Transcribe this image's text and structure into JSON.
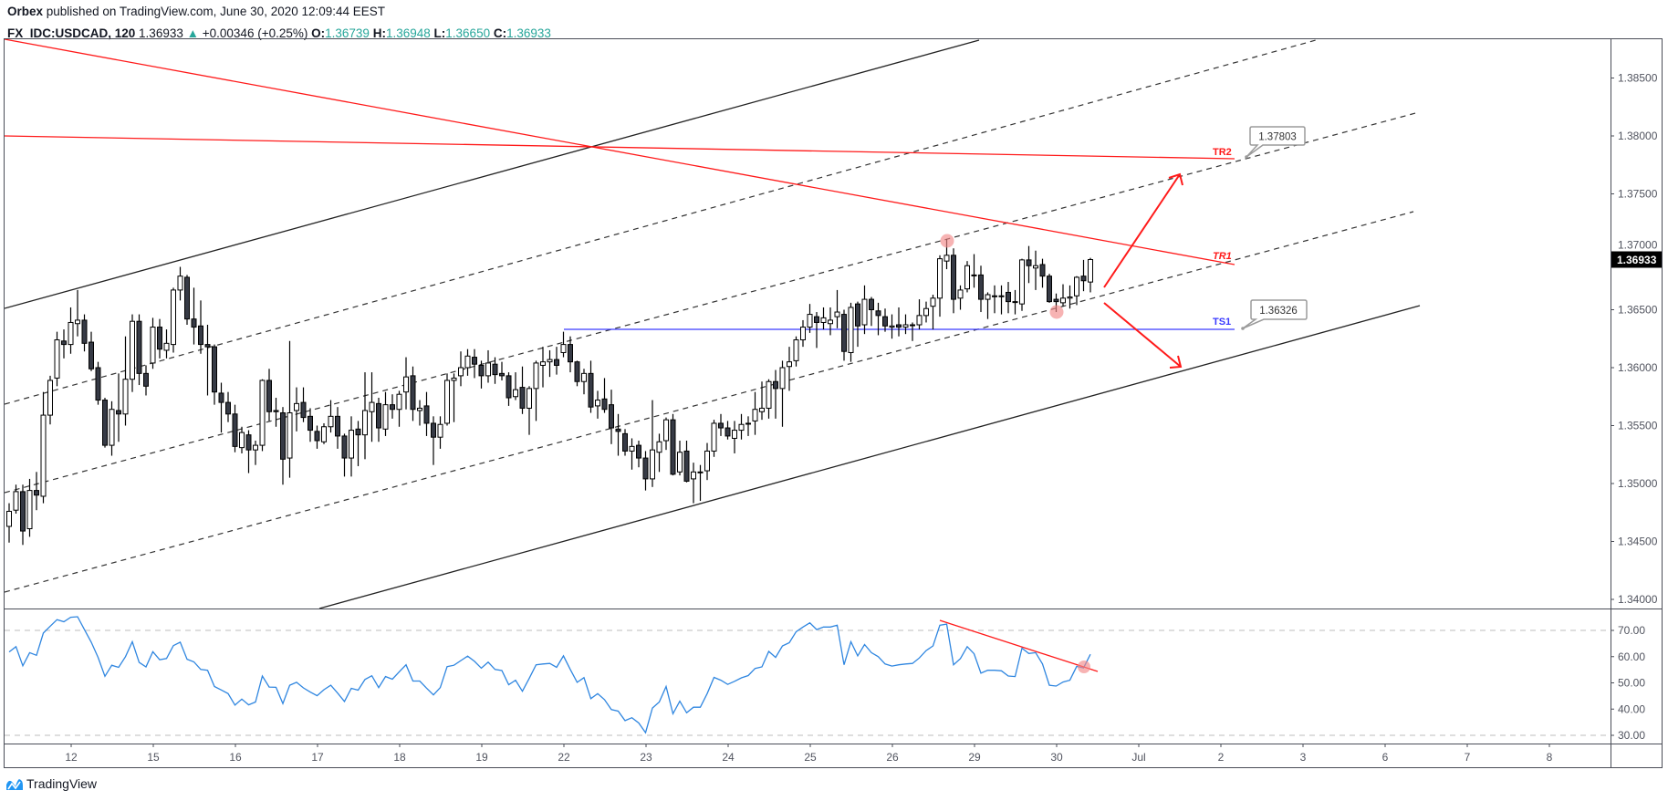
{
  "header": {
    "author": "Orbex",
    "published": " published on TradingView.com, June 30, 2020 12:09:44 EEST",
    "symbol": "FX_IDC:USDCAD, 120",
    "last": "1.36933",
    "change": "+0.00346 (+0.25%)",
    "o_label": "O:",
    "o": "1.36739",
    "h_label": "H:",
    "h": "1.36948",
    "l_label": "L:",
    "l": "1.36650",
    "c_label": "C:",
    "c": "1.36933"
  },
  "footer": {
    "brand": "TradingView"
  },
  "colors": {
    "up_body": "#ffffff",
    "down_body": "#363a45",
    "rsi": "#2f86e0",
    "drawing_red": "#ff1a1a",
    "support_blue": "#3a3aff",
    "teal": "#26a69a"
  },
  "chart_data": [
    {
      "type": "candlestick",
      "title": "FX_IDC:USDCAD, 120",
      "ylim": [
        1.3375,
        1.3885
      ],
      "price_ticks": [
        "1.38500",
        "1.38000",
        "1.37500",
        "1.37000",
        "1.36500",
        "1.36000",
        "1.35500",
        "1.35000",
        "1.34500",
        "1.34000"
      ],
      "last_price_label": "1.36933",
      "x_ticks": [
        "12",
        "15",
        "16",
        "17",
        "18",
        "19",
        "22",
        "23",
        "24",
        "25",
        "26",
        "29",
        "30",
        "Jul",
        "2",
        "3",
        "6",
        "7",
        "8"
      ],
      "candles_ohlc": [
        [
          1.3463,
          1.3483,
          1.3449,
          1.3476
        ],
        [
          1.3477,
          1.3499,
          1.3474,
          1.3493
        ],
        [
          1.3493,
          1.3499,
          1.3447,
          1.3459
        ],
        [
          1.3461,
          1.3504,
          1.3454,
          1.3494
        ],
        [
          1.3494,
          1.351,
          1.3477,
          1.349
        ],
        [
          1.3489,
          1.3579,
          1.3483,
          1.3559
        ],
        [
          1.3559,
          1.3593,
          1.3551,
          1.3589
        ],
        [
          1.3591,
          1.3631,
          1.3584,
          1.3624
        ],
        [
          1.3623,
          1.3633,
          1.3608,
          1.362
        ],
        [
          1.362,
          1.3652,
          1.3612,
          1.3639
        ],
        [
          1.3638,
          1.3667,
          1.3627,
          1.3641
        ],
        [
          1.3641,
          1.3646,
          1.3614,
          1.3621
        ],
        [
          1.3622,
          1.3631,
          1.3597,
          1.3599
        ],
        [
          1.36,
          1.3605,
          1.3568,
          1.3572
        ],
        [
          1.3572,
          1.3574,
          1.3531,
          1.3533
        ],
        [
          1.3533,
          1.3571,
          1.3524,
          1.3564
        ],
        [
          1.3563,
          1.3595,
          1.3536,
          1.356
        ],
        [
          1.356,
          1.3627,
          1.355,
          1.359
        ],
        [
          1.359,
          1.3646,
          1.3579,
          1.364
        ],
        [
          1.364,
          1.3646,
          1.3585,
          1.3595
        ],
        [
          1.3595,
          1.3602,
          1.3576,
          1.3584
        ],
        [
          1.3604,
          1.3643,
          1.3599,
          1.3635
        ],
        [
          1.3635,
          1.3642,
          1.3608,
          1.3616
        ],
        [
          1.3615,
          1.3633,
          1.3608,
          1.3621
        ],
        [
          1.362,
          1.3669,
          1.3613,
          1.3667
        ],
        [
          1.3667,
          1.3687,
          1.3658,
          1.3679
        ],
        [
          1.3678,
          1.368,
          1.3637,
          1.3642
        ],
        [
          1.3642,
          1.3669,
          1.362,
          1.3635
        ],
        [
          1.3636,
          1.3658,
          1.3612,
          1.362
        ],
        [
          1.362,
          1.3637,
          1.3576,
          1.3618
        ],
        [
          1.3618,
          1.362,
          1.3568,
          1.3579
        ],
        [
          1.3578,
          1.3587,
          1.3544,
          1.357
        ],
        [
          1.357,
          1.3579,
          1.3553,
          1.356
        ],
        [
          1.356,
          1.3568,
          1.3527,
          1.3532
        ],
        [
          1.3531,
          1.3549,
          1.3526,
          1.3544
        ],
        [
          1.3542,
          1.3546,
          1.3509,
          1.3529
        ],
        [
          1.3529,
          1.3537,
          1.3516,
          1.3533
        ],
        [
          1.3533,
          1.359,
          1.3528,
          1.3589
        ],
        [
          1.3589,
          1.3599,
          1.3554,
          1.3562
        ],
        [
          1.3563,
          1.3574,
          1.3549,
          1.3562
        ],
        [
          1.3561,
          1.3566,
          1.3499,
          1.3521
        ],
        [
          1.3522,
          1.3623,
          1.3505,
          1.3561
        ],
        [
          1.3563,
          1.3583,
          1.3545,
          1.3569
        ],
        [
          1.357,
          1.3583,
          1.3553,
          1.3557
        ],
        [
          1.3558,
          1.3565,
          1.3536,
          1.3546
        ],
        [
          1.3545,
          1.355,
          1.353,
          1.3537
        ],
        [
          1.3536,
          1.3552,
          1.3534,
          1.3549
        ],
        [
          1.3549,
          1.3572,
          1.3544,
          1.3558
        ],
        [
          1.3558,
          1.3566,
          1.353,
          1.3541
        ],
        [
          1.3541,
          1.3543,
          1.3506,
          1.3522
        ],
        [
          1.3522,
          1.3558,
          1.3506,
          1.3546
        ],
        [
          1.3547,
          1.3554,
          1.3515,
          1.3542
        ],
        [
          1.3542,
          1.3596,
          1.3521,
          1.3563
        ],
        [
          1.3562,
          1.3596,
          1.3536,
          1.357
        ],
        [
          1.3569,
          1.3574,
          1.3536,
          1.3548
        ],
        [
          1.3547,
          1.3579,
          1.3541,
          1.3568
        ],
        [
          1.3568,
          1.3577,
          1.3556,
          1.3564
        ],
        [
          1.3564,
          1.358,
          1.3549,
          1.3577
        ],
        [
          1.3579,
          1.3609,
          1.3564,
          1.3592
        ],
        [
          1.3593,
          1.3601,
          1.3554,
          1.3564
        ],
        [
          1.3563,
          1.3572,
          1.355,
          1.3565
        ],
        [
          1.3567,
          1.3579,
          1.3541,
          1.3552
        ],
        [
          1.3552,
          1.3558,
          1.3516,
          1.354
        ],
        [
          1.354,
          1.3558,
          1.353,
          1.3551
        ],
        [
          1.3552,
          1.3595,
          1.355,
          1.3589
        ],
        [
          1.3589,
          1.3595,
          1.3553,
          1.3591
        ],
        [
          1.3593,
          1.3614,
          1.3584,
          1.36
        ],
        [
          1.36,
          1.3616,
          1.3593,
          1.361
        ],
        [
          1.3609,
          1.3616,
          1.3591,
          1.3603
        ],
        [
          1.3602,
          1.3606,
          1.3582,
          1.3593
        ],
        [
          1.3593,
          1.3615,
          1.3587,
          1.3604
        ],
        [
          1.3603,
          1.3609,
          1.3586,
          1.3594
        ],
        [
          1.3595,
          1.3605,
          1.3589,
          1.3593
        ],
        [
          1.3593,
          1.3596,
          1.3567,
          1.3574
        ],
        [
          1.3575,
          1.3596,
          1.3572,
          1.3581
        ],
        [
          1.3583,
          1.3601,
          1.356,
          1.3565
        ],
        [
          1.3565,
          1.3584,
          1.3542,
          1.3582
        ],
        [
          1.3582,
          1.3606,
          1.3554,
          1.3604
        ],
        [
          1.3602,
          1.3618,
          1.3583,
          1.3605
        ],
        [
          1.3605,
          1.3615,
          1.3592,
          1.3607
        ],
        [
          1.3607,
          1.3618,
          1.3594,
          1.3602
        ],
        [
          1.3613,
          1.3631,
          1.3609,
          1.362
        ],
        [
          1.362,
          1.3627,
          1.3596,
          1.3605
        ],
        [
          1.3605,
          1.3606,
          1.3584,
          1.3588
        ],
        [
          1.3588,
          1.3599,
          1.3577,
          1.3595
        ],
        [
          1.3595,
          1.3606,
          1.3561,
          1.3566
        ],
        [
          1.3567,
          1.358,
          1.3556,
          1.3572
        ],
        [
          1.3573,
          1.3591,
          1.3561,
          1.3564
        ],
        [
          1.3568,
          1.3581,
          1.3534,
          1.3548
        ],
        [
          1.3547,
          1.356,
          1.3524,
          1.3545
        ],
        [
          1.3543,
          1.3547,
          1.3524,
          1.3528
        ],
        [
          1.3528,
          1.3539,
          1.3512,
          1.3532
        ],
        [
          1.3533,
          1.3537,
          1.3514,
          1.3522
        ],
        [
          1.3522,
          1.3528,
          1.3494,
          1.3504
        ],
        [
          1.3504,
          1.3572,
          1.3497,
          1.3529
        ],
        [
          1.3527,
          1.3543,
          1.351,
          1.3536
        ],
        [
          1.3537,
          1.3557,
          1.3529,
          1.3555
        ],
        [
          1.3555,
          1.356,
          1.3507,
          1.3508
        ],
        [
          1.351,
          1.3537,
          1.3507,
          1.3527
        ],
        [
          1.3528,
          1.3537,
          1.3501,
          1.3502
        ],
        [
          1.3504,
          1.3518,
          1.3483,
          1.351
        ],
        [
          1.351,
          1.3516,
          1.3485,
          1.351
        ],
        [
          1.3511,
          1.3535,
          1.3503,
          1.3528
        ],
        [
          1.3528,
          1.3555,
          1.3523,
          1.3552
        ],
        [
          1.3552,
          1.356,
          1.3541,
          1.3548
        ],
        [
          1.3548,
          1.3554,
          1.3538,
          1.3541
        ],
        [
          1.3539,
          1.3554,
          1.3526,
          1.3546
        ],
        [
          1.3546,
          1.356,
          1.3538,
          1.3551
        ],
        [
          1.3552,
          1.3558,
          1.3541,
          1.3552
        ],
        [
          1.3554,
          1.3579,
          1.3542,
          1.3564
        ],
        [
          1.3562,
          1.3588,
          1.3555,
          1.3565
        ],
        [
          1.3565,
          1.359,
          1.3556,
          1.3588
        ],
        [
          1.3588,
          1.3598,
          1.3556,
          1.3582
        ],
        [
          1.3582,
          1.3606,
          1.3549,
          1.36
        ],
        [
          1.3601,
          1.3618,
          1.358,
          1.3605
        ],
        [
          1.3606,
          1.3627,
          1.3601,
          1.3624
        ],
        [
          1.3624,
          1.3641,
          1.3618,
          1.3635
        ],
        [
          1.3635,
          1.3655,
          1.363,
          1.3646
        ],
        [
          1.3644,
          1.3648,
          1.3617,
          1.3639
        ],
        [
          1.3639,
          1.3652,
          1.3633,
          1.3643
        ],
        [
          1.3638,
          1.3652,
          1.3628,
          1.3641
        ],
        [
          1.3644,
          1.3667,
          1.3634,
          1.3648
        ],
        [
          1.3646,
          1.365,
          1.3606,
          1.3614
        ],
        [
          1.3613,
          1.3656,
          1.3605,
          1.3652
        ],
        [
          1.3655,
          1.3657,
          1.3618,
          1.3636
        ],
        [
          1.3637,
          1.3671,
          1.3629,
          1.3659
        ],
        [
          1.3659,
          1.3661,
          1.3636,
          1.365
        ],
        [
          1.3649,
          1.3656,
          1.3628,
          1.3645
        ],
        [
          1.3644,
          1.3651,
          1.3631,
          1.3636
        ],
        [
          1.3635,
          1.3646,
          1.3625,
          1.3636
        ],
        [
          1.3637,
          1.3652,
          1.3627,
          1.3635
        ],
        [
          1.3635,
          1.3646,
          1.3629,
          1.3637
        ],
        [
          1.3637,
          1.3639,
          1.3623,
          1.3637
        ],
        [
          1.3637,
          1.3659,
          1.3633,
          1.3645
        ],
        [
          1.3645,
          1.3657,
          1.3639,
          1.3651
        ],
        [
          1.3653,
          1.3663,
          1.3633,
          1.366
        ],
        [
          1.366,
          1.3697,
          1.3644,
          1.3694
        ],
        [
          1.3692,
          1.3711,
          1.3685,
          1.3697
        ],
        [
          1.3697,
          1.3703,
          1.3647,
          1.3659
        ],
        [
          1.366,
          1.3671,
          1.365,
          1.3667
        ],
        [
          1.3668,
          1.3692,
          1.3665,
          1.3688
        ],
        [
          1.368,
          1.3698,
          1.3669,
          1.368
        ],
        [
          1.368,
          1.3688,
          1.3648,
          1.3659
        ],
        [
          1.3659,
          1.3665,
          1.3642,
          1.3663
        ],
        [
          1.3662,
          1.3671,
          1.3647,
          1.3662
        ],
        [
          1.3662,
          1.3671,
          1.3646,
          1.3662
        ],
        [
          1.3665,
          1.3674,
          1.3647,
          1.3657
        ],
        [
          1.3657,
          1.3667,
          1.3646,
          1.3657
        ],
        [
          1.3655,
          1.3694,
          1.3649,
          1.3693
        ],
        [
          1.3693,
          1.3705,
          1.3673,
          1.3688
        ],
        [
          1.3686,
          1.3701,
          1.3667,
          1.3688
        ],
        [
          1.3689,
          1.3694,
          1.3669,
          1.3679
        ],
        [
          1.3679,
          1.3681,
          1.3656,
          1.3657
        ],
        [
          1.3659,
          1.3664,
          1.3648,
          1.3657
        ],
        [
          1.3656,
          1.3672,
          1.3653,
          1.366
        ],
        [
          1.366,
          1.3671,
          1.3651,
          1.3661
        ],
        [
          1.3662,
          1.3679,
          1.3654,
          1.3678
        ],
        [
          1.3679,
          1.3693,
          1.3666,
          1.3675
        ],
        [
          1.36739,
          1.36948,
          1.3665,
          1.36933
        ]
      ],
      "annotations": {
        "tr2_label": "TR2",
        "tr1_label": "TR1",
        "ts1_label": "TS1",
        "tr2_callout": "1.37803",
        "ts1_callout": "1.36326",
        "ts1_price": 1.36326,
        "tr2_price": 1.37803
      }
    },
    {
      "type": "line",
      "title": "RSI",
      "ylim": [
        27,
        79
      ],
      "y_ticks": [
        "70.00",
        "60.00",
        "50.00",
        "40.00",
        "30.00"
      ],
      "bands": [
        70,
        30
      ],
      "values": [
        61.8,
        63.8,
        56.5,
        61.5,
        60.5,
        69,
        71.6,
        74.1,
        73.3,
        75,
        75.2,
        70.3,
        65.5,
        59.7,
        52.5,
        56.7,
        55.9,
        60,
        65.7,
        57.8,
        56.1,
        61.9,
        58.8,
        59.3,
        64.2,
        65.5,
        59,
        58,
        55.1,
        54.8,
        48.6,
        47.3,
        45.9,
        41.5,
        43.8,
        41.6,
        42.7,
        52.6,
        48.4,
        48.3,
        42.1,
        49.1,
        50.2,
        48.1,
        46.5,
        45.1,
        47.4,
        49.1,
        46.1,
        42.9,
        47.9,
        47.2,
        51.3,
        52.7,
        48.2,
        52.4,
        51.4,
        54.2,
        56.9,
        50.7,
        50.7,
        48,
        45.4,
        48.2,
        56.2,
        56.7,
        58.5,
        60.2,
        58.2,
        55.6,
        57.9,
        55.1,
        54.7,
        49.3,
        51,
        46.8,
        51.7,
        56.9,
        57.2,
        57.4,
        55.9,
        60.3,
        55.1,
        50.2,
        52,
        44,
        45.9,
        43.6,
        39.8,
        39.2,
        35.6,
        36.7,
        34.7,
        31,
        40.4,
        42.7,
        48.6,
        38.2,
        43,
        38.6,
        40.7,
        40.7,
        45.9,
        52.1,
        51,
        49.4,
        50.6,
        51.9,
        52.8,
        55.5,
        56.1,
        62,
        59.7,
        64.1,
        65.3,
        69.5,
        71.3,
        72.9,
        70.3,
        71.3,
        71.3,
        72,
        56.9,
        65.7,
        60.3,
        64.6,
        61.5,
        60,
        57.2,
        56.4,
        56.9,
        57.2,
        57.4,
        59.5,
        62.3,
        64.1,
        72,
        72.4,
        56.9,
        59.2,
        63.8,
        61.1,
        53.7,
        54.8,
        54.8,
        54.6,
        52.6,
        52.4,
        63.2,
        61.2,
        61.5,
        57.2,
        49.1,
        48.8,
        50.3,
        51,
        56.3,
        55.7,
        60.9
      ]
    }
  ]
}
